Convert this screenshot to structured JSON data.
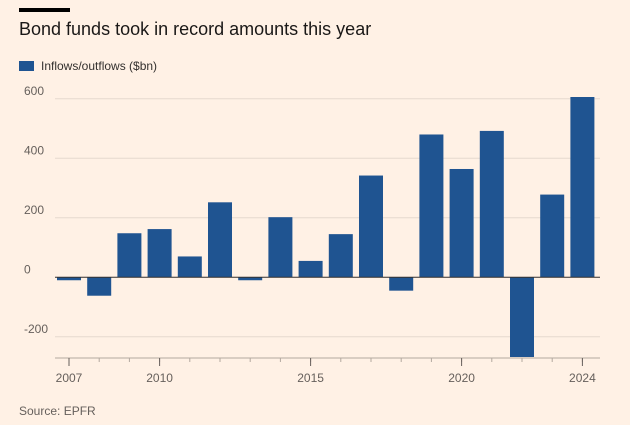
{
  "title": "Bond funds took in record amounts this year",
  "source": "Source: EPFR",
  "colors": {
    "background": "#fff1e5",
    "bar": "#1f5491",
    "grid": "#e6d9ce",
    "zero_line": "#33302e",
    "tick_text": "#66605c"
  },
  "chart_data": {
    "type": "bar",
    "title": "Bond funds took in record amounts this year",
    "xlabel": "",
    "ylabel": "",
    "legend": [
      "Inflows/outflows ($bn)"
    ],
    "legend_position": "top-left",
    "categories": [
      "2007",
      "2008",
      "2009",
      "2010",
      "2011",
      "2012",
      "2013",
      "2014",
      "2015",
      "2016",
      "2017",
      "2018",
      "2019",
      "2020",
      "2021",
      "2022",
      "2023",
      "2024"
    ],
    "series": [
      {
        "name": "Inflows/outflows ($bn)",
        "values": [
          -10,
          -62,
          148,
          162,
          70,
          252,
          -10,
          202,
          55,
          145,
          342,
          -45,
          480,
          364,
          492,
          -268,
          278,
          606
        ]
      }
    ],
    "ylim": [
      -268,
      606
    ],
    "yticks": [
      600,
      400,
      200,
      0,
      -200
    ],
    "ytick_labels": [
      "600",
      "400",
      "200",
      "0",
      "-200"
    ],
    "xtick_labels": [
      {
        "category": "2007",
        "label": "2007"
      },
      {
        "category": "2010",
        "label": "2010"
      },
      {
        "category": "2015",
        "label": "2015"
      },
      {
        "category": "2020",
        "label": "2020"
      },
      {
        "category": "2024",
        "label": "2024"
      }
    ],
    "grid": true
  }
}
